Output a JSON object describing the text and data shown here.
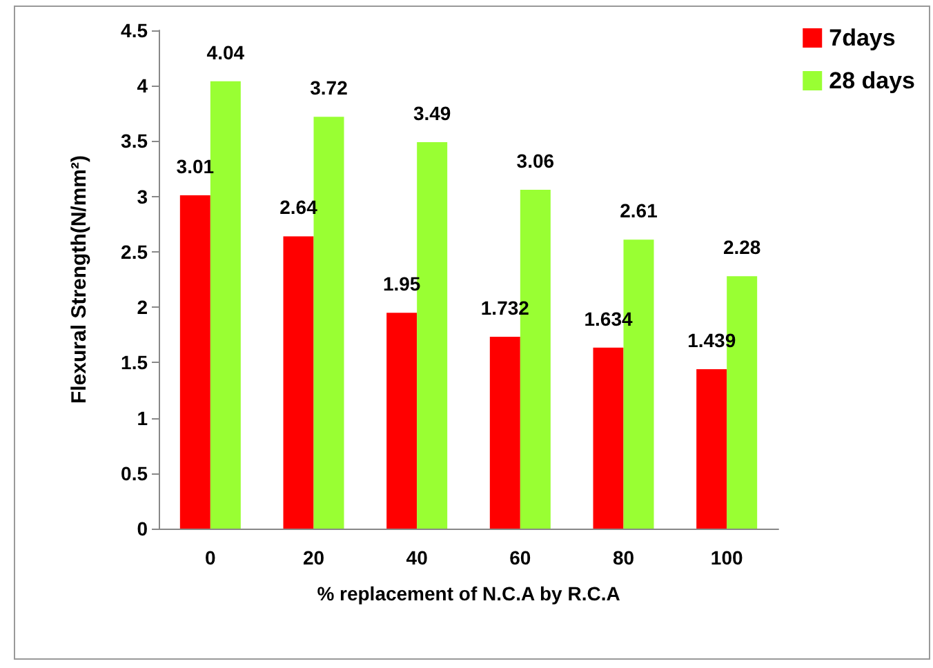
{
  "chart_data": {
    "type": "bar",
    "xlabel": "% replacement of N.C.A by R.C.A",
    "ylabel": "Flexural Strength(N/mm²)",
    "categories": [
      "0",
      "20",
      "40",
      "60",
      "80",
      "100"
    ],
    "series": [
      {
        "name": "7days",
        "color": "#ff0000",
        "values": [
          3.01,
          2.64,
          1.95,
          1.732,
          1.634,
          1.439
        ]
      },
      {
        "name": "28 days",
        "color": "#99ff33",
        "values": [
          4.04,
          3.72,
          3.49,
          3.06,
          2.61,
          2.28
        ]
      }
    ],
    "ylim": [
      0,
      4.5
    ],
    "yticks": [
      0,
      0.5,
      1,
      1.5,
      2,
      2.5,
      3,
      3.5,
      4,
      4.5
    ],
    "grid": false,
    "legend": "top right",
    "data_labels": true
  }
}
